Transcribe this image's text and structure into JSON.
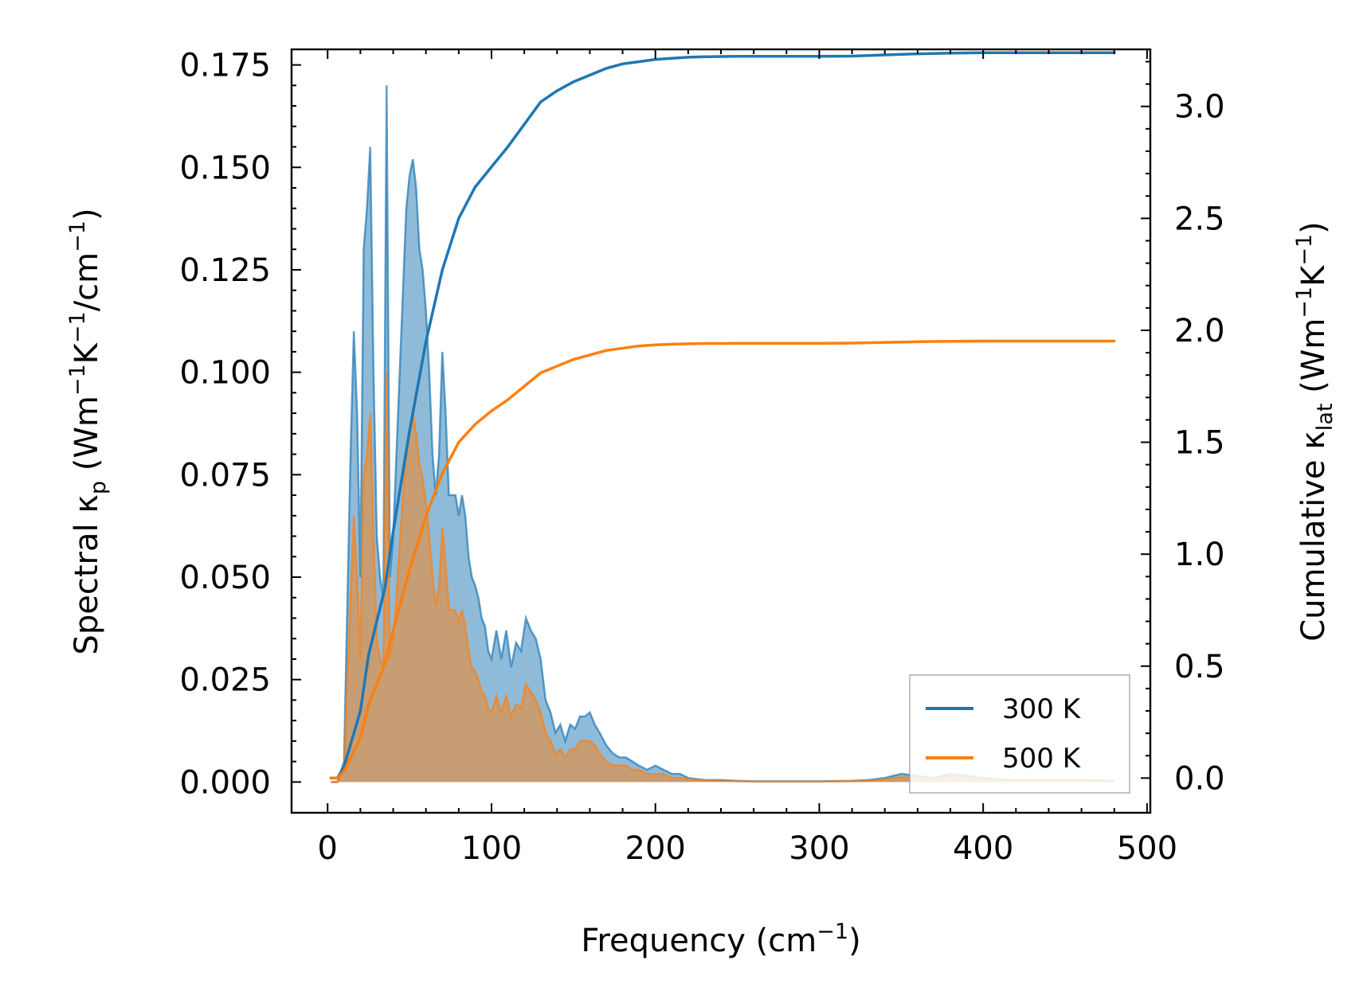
{
  "chart_data": {
    "type": "line",
    "title": "",
    "xlabel": "Frequency",
    "xlabel_unit_base": "cm",
    "xlabel_unit_exp": "−1",
    "ylabel_left": {
      "base": "Spectral κ",
      "sub": "p",
      "unit_open": " (Wm",
      "exp1": "−1",
      "unit_mid": "K",
      "exp2": "−1",
      "unit_mid2": "/cm",
      "exp3": "−1",
      "unit_close": ")"
    },
    "ylabel_right": {
      "base": "Cumulative κ",
      "sub": "lat",
      "unit_open": " (Wm",
      "exp1": "−1",
      "unit_mid": "K",
      "exp2": "−1",
      "unit_close": ")"
    },
    "xlim": [
      -22,
      502
    ],
    "ylim_left": [
      -0.0075,
      0.1788
    ],
    "ylim_right": [
      -0.155,
      3.255
    ],
    "xticks": [
      0,
      100,
      200,
      300,
      400,
      500
    ],
    "xtick_labels": [
      "0",
      "100",
      "200",
      "300",
      "400",
      "500"
    ],
    "yticks_left": [
      0,
      0.025,
      0.05,
      0.075,
      0.1,
      0.125,
      0.15,
      0.175
    ],
    "ytick_labels_left": [
      "0.000",
      "0.025",
      "0.050",
      "0.075",
      "0.100",
      "0.125",
      "0.150",
      "0.175"
    ],
    "yticks_right": [
      0,
      0.5,
      1.0,
      1.5,
      2.0,
      2.5,
      3.0
    ],
    "ytick_labels_right": [
      "0.0",
      "0.5",
      "1.0",
      "1.5",
      "2.0",
      "2.5",
      "3.0"
    ],
    "legend": {
      "position": "lower right",
      "entries": [
        {
          "label": "300 K",
          "color": "#1f77b4"
        },
        {
          "label": "500 K",
          "color": "#ff7f0e"
        }
      ]
    },
    "series": [
      {
        "name": "300 K",
        "color": "#1f77b4",
        "spectral": {
          "x": [
            2,
            6,
            10,
            14,
            16,
            18,
            20,
            22,
            24,
            26,
            28,
            30,
            32,
            34,
            36,
            38,
            40,
            42,
            44,
            46,
            48,
            50,
            52,
            54,
            56,
            58,
            60,
            62,
            64,
            66,
            68,
            70,
            72,
            74,
            76,
            78,
            80,
            82,
            84,
            86,
            88,
            90,
            92,
            94,
            96,
            98,
            100,
            103,
            106,
            109,
            112,
            115,
            118,
            121,
            124,
            127,
            130,
            133,
            136,
            139,
            142,
            145,
            148,
            151,
            154,
            157,
            160,
            163,
            166,
            170,
            174,
            178,
            182,
            186,
            190,
            195,
            200,
            205,
            210,
            215,
            220,
            230,
            240,
            250,
            260,
            280,
            300,
            320,
            330,
            340,
            350,
            360,
            370,
            380,
            390,
            400,
            420,
            440,
            460,
            480
          ],
          "y": [
            0,
            0,
            0.005,
            0.08,
            0.11,
            0.09,
            0.05,
            0.13,
            0.14,
            0.155,
            0.1,
            0.06,
            0.05,
            0.045,
            0.17,
            0.05,
            0.06,
            0.08,
            0.1,
            0.12,
            0.14,
            0.148,
            0.152,
            0.145,
            0.13,
            0.125,
            0.115,
            0.1,
            0.08,
            0.07,
            0.08,
            0.105,
            0.09,
            0.07,
            0.07,
            0.07,
            0.065,
            0.07,
            0.065,
            0.055,
            0.05,
            0.048,
            0.045,
            0.04,
            0.038,
            0.032,
            0.03,
            0.037,
            0.03,
            0.037,
            0.028,
            0.034,
            0.032,
            0.04,
            0.037,
            0.035,
            0.03,
            0.02,
            0.017,
            0.012,
            0.014,
            0.01,
            0.014,
            0.013,
            0.016,
            0.016,
            0.017,
            0.014,
            0.012,
            0.009,
            0.007,
            0.006,
            0.006,
            0.005,
            0.004,
            0.003,
            0.004,
            0.003,
            0.002,
            0.002,
            0.001,
            0.0005,
            0.0005,
            0.0003,
            0.0002,
            0.0002,
            0.0002,
            0.0003,
            0.0005,
            0.001,
            0.002,
            0.0015,
            0.001,
            0.002,
            0.0015,
            0.001,
            0.0005,
            0.0005,
            0.0005,
            0.0003
          ]
        },
        "cumulative": {
          "x": [
            2,
            6,
            10,
            14,
            20,
            25,
            30,
            35,
            40,
            50,
            60,
            70,
            80,
            90,
            100,
            110,
            120,
            130,
            140,
            150,
            160,
            170,
            180,
            190,
            200,
            210,
            220,
            230,
            240,
            250,
            270,
            300,
            320,
            340,
            360,
            380,
            400,
            440,
            480
          ],
          "y": [
            0,
            0,
            0.05,
            0.15,
            0.3,
            0.55,
            0.7,
            0.85,
            1.1,
            1.55,
            1.95,
            2.27,
            2.5,
            2.64,
            2.73,
            2.82,
            2.92,
            3.02,
            3.07,
            3.11,
            3.14,
            3.17,
            3.19,
            3.2,
            3.21,
            3.215,
            3.22,
            3.222,
            3.223,
            3.224,
            3.224,
            3.224,
            3.225,
            3.23,
            3.235,
            3.238,
            3.24,
            3.24,
            3.24
          ]
        }
      },
      {
        "name": "500 K",
        "color": "#ff7f0e",
        "spectral": {
          "x": [
            2,
            6,
            10,
            14,
            16,
            18,
            20,
            22,
            24,
            26,
            28,
            30,
            32,
            34,
            36,
            38,
            40,
            42,
            44,
            46,
            48,
            50,
            52,
            54,
            56,
            58,
            60,
            62,
            64,
            66,
            68,
            70,
            72,
            74,
            76,
            78,
            80,
            82,
            84,
            86,
            88,
            90,
            92,
            94,
            96,
            98,
            100,
            103,
            106,
            109,
            112,
            115,
            118,
            121,
            124,
            127,
            130,
            133,
            136,
            139,
            142,
            145,
            148,
            151,
            154,
            157,
            160,
            163,
            166,
            170,
            174,
            178,
            182,
            186,
            190,
            195,
            200,
            205,
            210,
            215,
            220,
            230,
            240,
            250,
            260,
            280,
            300,
            320,
            330,
            340,
            350,
            360,
            370,
            380,
            390,
            400,
            420,
            440,
            460,
            480
          ],
          "y": [
            0,
            0,
            0.003,
            0.045,
            0.065,
            0.05,
            0.03,
            0.075,
            0.08,
            0.09,
            0.06,
            0.035,
            0.03,
            0.028,
            0.1,
            0.03,
            0.035,
            0.045,
            0.058,
            0.07,
            0.08,
            0.085,
            0.09,
            0.085,
            0.078,
            0.074,
            0.068,
            0.06,
            0.05,
            0.043,
            0.048,
            0.062,
            0.053,
            0.042,
            0.042,
            0.042,
            0.039,
            0.042,
            0.038,
            0.032,
            0.028,
            0.027,
            0.025,
            0.022,
            0.021,
            0.018,
            0.017,
            0.021,
            0.017,
            0.021,
            0.016,
            0.019,
            0.018,
            0.024,
            0.022,
            0.02,
            0.017,
            0.012,
            0.01,
            0.007,
            0.008,
            0.006,
            0.008,
            0.008,
            0.01,
            0.01,
            0.01,
            0.009,
            0.007,
            0.005,
            0.004,
            0.004,
            0.004,
            0.003,
            0.003,
            0.002,
            0.002,
            0.002,
            0.001,
            0.001,
            0.0007,
            0.0004,
            0.0003,
            0.0002,
            0.0001,
            0.0001,
            0.0001,
            0.0002,
            0.0003,
            0.0006,
            0.0012,
            0.001,
            0.0007,
            0.0012,
            0.001,
            0.0007,
            0.0003,
            0.0003,
            0.0003,
            0.0002
          ]
        },
        "cumulative": {
          "x": [
            2,
            6,
            10,
            14,
            20,
            25,
            30,
            35,
            40,
            50,
            60,
            70,
            80,
            90,
            100,
            110,
            120,
            130,
            140,
            150,
            160,
            170,
            180,
            190,
            200,
            210,
            220,
            230,
            240,
            250,
            270,
            300,
            320,
            340,
            360,
            380,
            400,
            440,
            480
          ],
          "y": [
            0,
            0,
            0.03,
            0.09,
            0.18,
            0.33,
            0.42,
            0.51,
            0.66,
            0.93,
            1.17,
            1.36,
            1.5,
            1.58,
            1.64,
            1.69,
            1.75,
            1.81,
            1.84,
            1.87,
            1.89,
            1.91,
            1.92,
            1.93,
            1.935,
            1.938,
            1.94,
            1.941,
            1.941,
            1.942,
            1.942,
            1.942,
            1.943,
            1.946,
            1.949,
            1.951,
            1.952,
            1.952,
            1.952
          ]
        }
      }
    ]
  }
}
